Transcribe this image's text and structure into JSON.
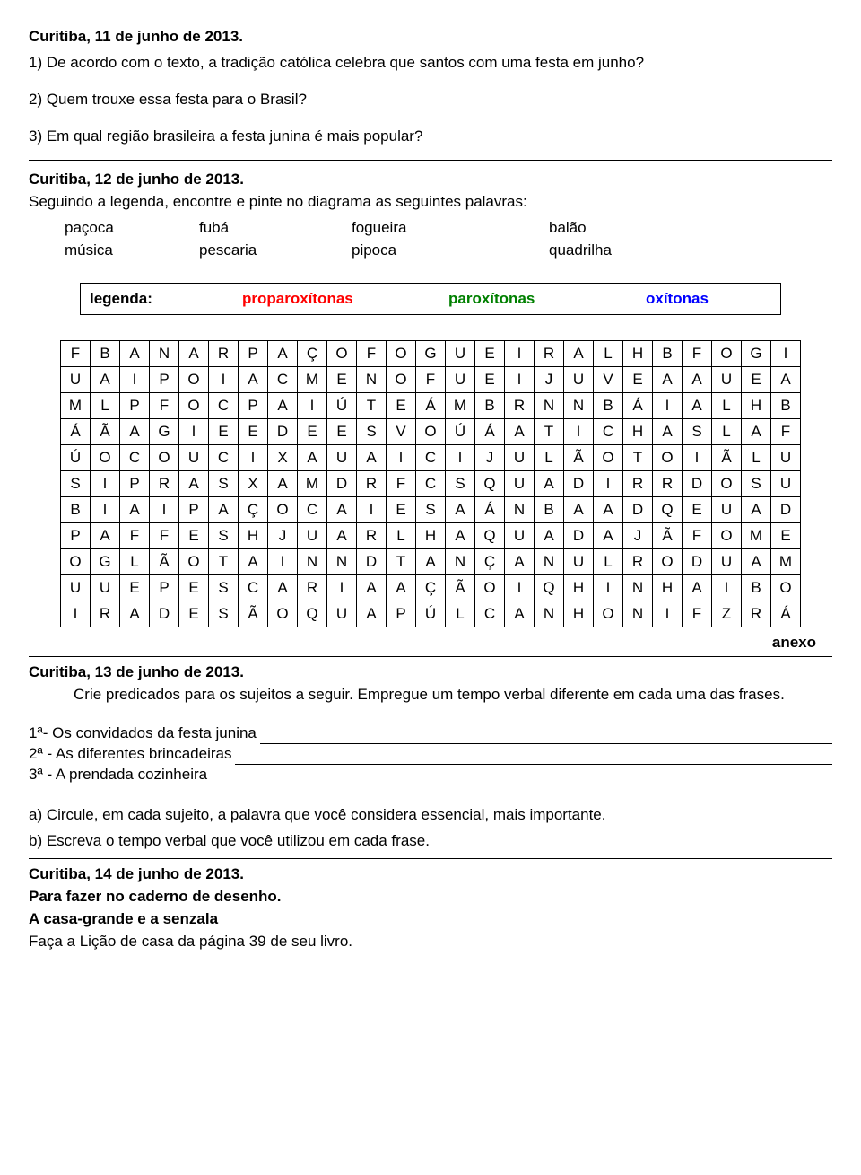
{
  "section1": {
    "date": "Curitiba, 11 de junho de 2013.",
    "q1": "1) De acordo com o texto, a tradição católica celebra que santos com uma festa em junho?",
    "q2": "2) Quem trouxe essa festa para o Brasil?",
    "q3": "3) Em qual região brasileira a festa junina é mais popular?"
  },
  "section2": {
    "date": "Curitiba, 12 de junho de 2013.",
    "intro": "Seguindo a legenda, encontre e pinte no diagrama as seguintes palavras:",
    "words": {
      "r1": {
        "c1": "paçoca",
        "c2": "fubá",
        "c3": "fogueira",
        "c4": "balão"
      },
      "r2": {
        "c1": "música",
        "c2": "pescaria",
        "c3": "pipoca",
        "c4": "quadrilha"
      }
    },
    "legend": {
      "label": "legenda:",
      "i1": "proparoxítonas",
      "i2": "paroxítonas",
      "i3": "oxítonas"
    },
    "anexo": "anexo"
  },
  "grid": {
    "rows": [
      [
        "F",
        "B",
        "A",
        "N",
        "A",
        "R",
        "P",
        "A",
        "Ç",
        "O",
        "F",
        "O",
        "G",
        "U",
        "E",
        "I",
        "R",
        "A",
        "L",
        "H",
        "B",
        "F",
        "O",
        "G",
        "I"
      ],
      [
        "U",
        "A",
        "I",
        "P",
        "O",
        "I",
        "A",
        "C",
        "M",
        "E",
        "N",
        "O",
        "F",
        "U",
        "E",
        "I",
        "J",
        "U",
        "V",
        "E",
        "A",
        "A",
        "U",
        "E",
        "A"
      ],
      [
        "M",
        "L",
        "P",
        "F",
        "O",
        "C",
        "P",
        "A",
        "I",
        "Ú",
        "T",
        "E",
        "Á",
        "M",
        "B",
        "R",
        "N",
        "N",
        "B",
        "Á",
        "I",
        "A",
        "L",
        "H",
        "B"
      ],
      [
        "Á",
        "Ã",
        "A",
        "G",
        "I",
        "E",
        "E",
        "D",
        "E",
        "E",
        "S",
        "V",
        "O",
        "Ú",
        "Á",
        "A",
        "T",
        "I",
        "C",
        "H",
        "A",
        "S",
        "L",
        "A",
        "F"
      ],
      [
        "Ú",
        "O",
        "C",
        "O",
        "U",
        "C",
        "I",
        "X",
        "A",
        "U",
        "A",
        "I",
        "C",
        "I",
        "J",
        "U",
        "L",
        "Ã",
        "O",
        "T",
        "O",
        "I",
        "Ã",
        "L",
        "U"
      ],
      [
        "S",
        "I",
        "P",
        "R",
        "A",
        "S",
        "X",
        "A",
        "M",
        "D",
        "R",
        "F",
        "C",
        "S",
        "Q",
        "U",
        "A",
        "D",
        "I",
        "R",
        "R",
        "D",
        "O",
        "S",
        "U"
      ],
      [
        "B",
        "I",
        "A",
        "I",
        "P",
        "A",
        "Ç",
        "O",
        "C",
        "A",
        "I",
        "E",
        "S",
        "A",
        "Á",
        "N",
        "B",
        "A",
        "A",
        "D",
        "Q",
        "E",
        "U",
        "A",
        "D"
      ],
      [
        "P",
        "A",
        "F",
        "F",
        "E",
        "S",
        "H",
        "J",
        "U",
        "A",
        "R",
        "L",
        "H",
        "A",
        "Q",
        "U",
        "A",
        "D",
        "A",
        "J",
        "Ã",
        "F",
        "O",
        "M",
        "E"
      ],
      [
        "O",
        "G",
        "L",
        "Ã",
        "O",
        "T",
        "A",
        "I",
        "N",
        "N",
        "D",
        "T",
        "A",
        "N",
        "Ç",
        "A",
        "N",
        "U",
        "L",
        "R",
        "O",
        "D",
        "U",
        "A",
        "M"
      ],
      [
        "U",
        "U",
        "E",
        "P",
        "E",
        "S",
        "C",
        "A",
        "R",
        "I",
        "A",
        "A",
        "Ç",
        "Ã",
        "O",
        "I",
        "Q",
        "H",
        "I",
        "N",
        "H",
        "A",
        "I",
        "B",
        "O"
      ],
      [
        "I",
        "R",
        "A",
        "D",
        "E",
        "S",
        "Ã",
        "O",
        "Q",
        "U",
        "A",
        "P",
        "Ú",
        "L",
        "C",
        "A",
        "N",
        "H",
        "O",
        "N",
        "I",
        "F",
        "Z",
        "R",
        "Á"
      ]
    ]
  },
  "section3": {
    "date": "Curitiba, 13 de junho de 2013.",
    "intro": "Crie predicados para os sujeitos a seguir. Empregue um tempo verbal diferente em cada uma das frases.",
    "f1": "1ª- Os convidados da festa junina",
    "f2": "2ª - As diferentes brincadeiras ",
    "f3": "3ª - A prendada cozinheira ",
    "a": "a) Circule, em cada sujeito, a palavra que você considera essencial, mais importante.",
    "b": "b) Escreva o tempo verbal que você utilizou em cada frase."
  },
  "section4": {
    "date": "Curitiba, 14 de junho de 2013.",
    "l1": "Para fazer no caderno de desenho.",
    "l2": "A casa-grande e a senzala",
    "l3": "Faça a Lição de casa da página 39 de seu livro."
  }
}
